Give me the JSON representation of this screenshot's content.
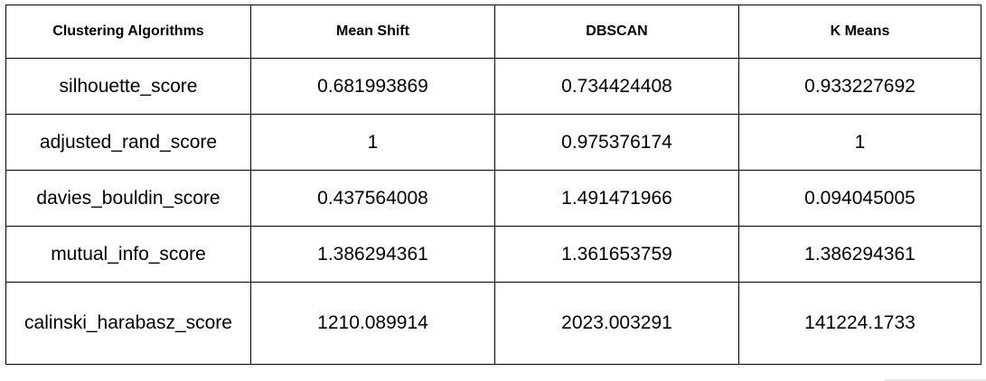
{
  "table": {
    "headers": [
      "Clustering Algorithms",
      "Mean Shift",
      "DBSCAN",
      "K Means"
    ],
    "rows": [
      {
        "metric": "silhouette_score",
        "values": [
          "0.681993869",
          "0.734424408",
          "0.933227692"
        ]
      },
      {
        "metric": "adjusted_rand_score",
        "values": [
          "1",
          "0.975376174",
          "1"
        ]
      },
      {
        "metric": "davies_bouldin_score",
        "values": [
          "0.437564008",
          "1.491471966",
          "0.094045005"
        ]
      },
      {
        "metric": "mutual_info_score",
        "values": [
          "1.386294361",
          "1.361653759",
          "1.386294361"
        ]
      },
      {
        "metric": "calinski_harabasz_score",
        "values": [
          "1210.089914",
          "2023.003291",
          "141224.1733"
        ]
      }
    ]
  }
}
